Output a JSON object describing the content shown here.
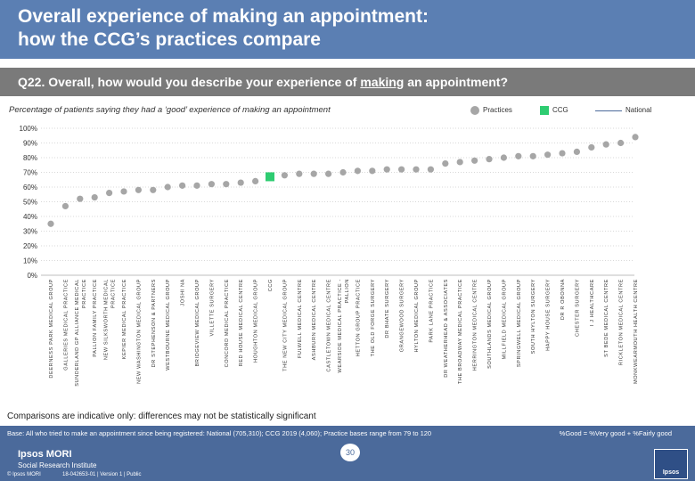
{
  "header": {
    "title": "Overall experience of making an appointment:\nhow the CCG’s practices compare"
  },
  "question": {
    "prefix": "Q22. Overall, how would you describe your experience of ",
    "underlined": "making",
    "suffix": " an appointment?"
  },
  "subtitle": "Percentage of patients saying they had a ‘good’ experience of making an appointment",
  "legend": [
    {
      "label": "Practices",
      "color": "#a6a6a6"
    },
    {
      "label": "CCG",
      "color": "#2ecc71"
    },
    {
      "label": "National",
      "color": "#4b6a9b"
    }
  ],
  "chart_data": {
    "type": "scatter",
    "ylim": [
      0,
      100
    ],
    "yticks": [
      "0%",
      "10%",
      "20%",
      "30%",
      "40%",
      "50%",
      "60%",
      "70%",
      "80%",
      "90%",
      "100%"
    ],
    "highlight": "CCG",
    "categories": [
      "DEERNESS PARK MEDICAL GROUP",
      "GALLERIES MEDICAL PRACTICE",
      "SUNDERLAND GP ALLIANCE MEDICAL PRACTICE",
      "PALLION FAMILY PRACTICE",
      "NEW SILKSWORTH MEDICAL PRACTICE",
      "KEPIER MEDICAL PRACTICE",
      "NEW WASHINGTON MEDICAL GROUP",
      "DR STEPHENSON & PARTNERS",
      "WESTBOURNE MEDICAL GROUP",
      "JOSHI NA",
      "BRIDGEVIEW MEDICAL GROUP",
      "VILLETTE SURGERY",
      "CONCORD MEDICAL PRACTICE",
      "RED HOUSE MEDICAL CENTRE",
      "HOUGHTON MEDICAL GROUP",
      "CCG",
      "THE NEW CITY MEDICAL GROUP",
      "FULWELL MEDICAL CENTRE",
      "ASHBURN MEDICAL CENTRE",
      "CASTLETOWN MEDICAL CENTRE",
      "WEARSIDE MEDICAL PRACTICE - PALLION",
      "HETTON GROUP PRACTICE",
      "THE OLD FORGE SURGERY",
      "DR BHATE SURGERY",
      "GRANGEWOOD SURGERY",
      "HYLTON MEDICAL GROUP",
      "PARK LANE PRACTICE",
      "DR WEATHERHEAD & ASSOCIATES",
      "THE BROADWAY MEDICAL PRACTICE",
      "HERRINGTON MEDICAL CENTRE",
      "SOUTHLANDS MEDICAL GROUP",
      "MILLFIELD MEDICAL GROUP",
      "SPRINGWELL MEDICAL GROUP",
      "SOUTH HYLTON SURGERY",
      "HAPPY HOUSE SURGERY",
      "DR R OBONNA",
      "CHESTER SURGERY",
      "I J HEALTHCARE",
      "ST BEDE MEDICAL CENTRE",
      "RICKLETON MEDICAL CENTRE",
      "MONKWEARMOUTH HEALTH CENTRE"
    ],
    "values": [
      35,
      47,
      52,
      53,
      56,
      57,
      58,
      58,
      60,
      61,
      61,
      62,
      62,
      63,
      64,
      67,
      68,
      69,
      69,
      69,
      70,
      71,
      71,
      72,
      72,
      72,
      72,
      76,
      77,
      78,
      79,
      80,
      81,
      81,
      82,
      83,
      84,
      87,
      89,
      90,
      94
    ]
  },
  "note": "Comparisons are indicative only: differences may not be statistically significant",
  "footer": {
    "base": "Base: All who tried to make an appointment since being registered: National (705,310); CCG 2019 (4,060); Practice bases range from 79 to 120",
    "formula": "%Good = %Very good + %Fairly good",
    "brand": "Ipsos MORI",
    "brand_sub": "Social Research Institute",
    "copyright": "© Ipsos MORI",
    "ref": "18-042653-01 | Version 1 | Public",
    "page": "30",
    "logo_text": "Ipsos"
  }
}
